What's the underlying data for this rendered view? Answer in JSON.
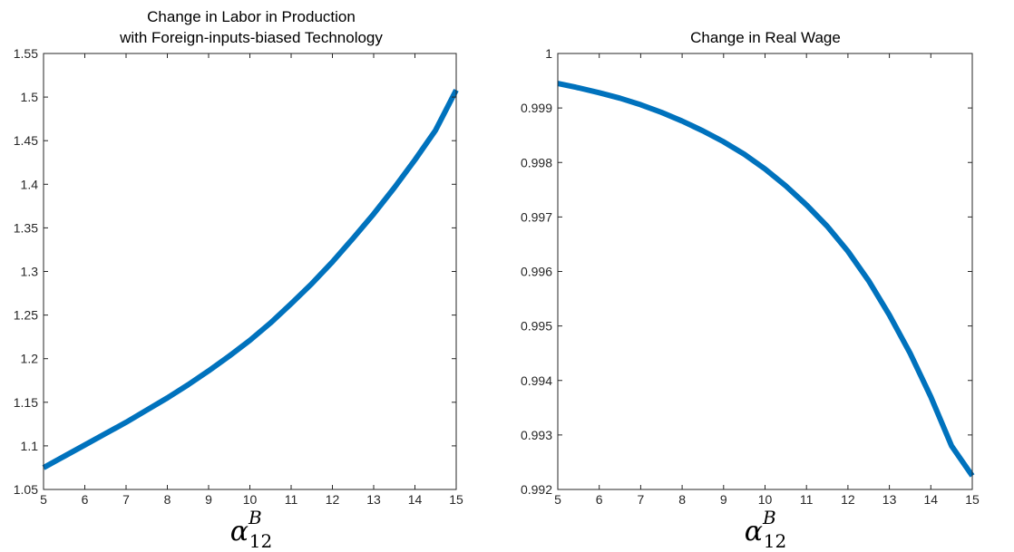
{
  "chart_data": [
    {
      "type": "line",
      "title": [
        "Change in Labor in Production",
        "with Foreign-inputs-biased Technology"
      ],
      "xlabel": {
        "base": "α",
        "sup": "B",
        "sub": "12"
      },
      "ylabel": "",
      "xlim": [
        5,
        15
      ],
      "ylim": [
        1.05,
        1.55
      ],
      "xticks": [
        5,
        6,
        7,
        8,
        9,
        10,
        11,
        12,
        13,
        14,
        15
      ],
      "xtick_labels": [
        "5",
        "6",
        "7",
        "8",
        "9",
        "10",
        "11",
        "12",
        "13",
        "14",
        "15"
      ],
      "yticks": [
        1.05,
        1.1,
        1.15,
        1.2,
        1.25,
        1.3,
        1.35,
        1.4,
        1.45,
        1.5,
        1.55
      ],
      "ytick_labels": [
        "1.05",
        "1.1",
        "1.15",
        "1.2",
        "1.25",
        "1.3",
        "1.35",
        "1.4",
        "1.45",
        "1.5",
        "1.55"
      ],
      "grid": false,
      "series": [
        {
          "color": "#0072BD",
          "x": [
            5,
            5.5,
            6,
            6.5,
            7,
            7.5,
            8,
            8.5,
            9,
            9.5,
            10,
            10.5,
            11,
            11.5,
            12,
            12.5,
            13,
            13.5,
            14,
            14.5,
            15
          ],
          "y": [
            1.075,
            1.088,
            1.101,
            1.114,
            1.127,
            1.141,
            1.155,
            1.17,
            1.186,
            1.203,
            1.221,
            1.241,
            1.263,
            1.286,
            1.311,
            1.338,
            1.366,
            1.396,
            1.428,
            1.462,
            1.508
          ]
        }
      ]
    },
    {
      "type": "line",
      "title": [
        "Change in Real Wage"
      ],
      "xlabel": {
        "base": "α",
        "sup": "B",
        "sub": "12"
      },
      "ylabel": "",
      "xlim": [
        5,
        15
      ],
      "ylim": [
        0.992,
        1.0
      ],
      "xticks": [
        5,
        6,
        7,
        8,
        9,
        10,
        11,
        12,
        13,
        14,
        15
      ],
      "xtick_labels": [
        "5",
        "6",
        "7",
        "8",
        "9",
        "10",
        "11",
        "12",
        "13",
        "14",
        "15"
      ],
      "yticks": [
        0.992,
        0.993,
        0.994,
        0.995,
        0.996,
        0.997,
        0.998,
        0.999,
        1.0
      ],
      "ytick_labels": [
        "0.992",
        "0.993",
        "0.994",
        "0.995",
        "0.996",
        "0.997",
        "0.998",
        "0.999",
        "1"
      ],
      "grid": false,
      "series": [
        {
          "color": "#0072BD",
          "x": [
            5,
            5.5,
            6,
            6.5,
            7,
            7.5,
            8,
            8.5,
            9,
            9.5,
            10,
            10.5,
            11,
            11.5,
            12,
            12.5,
            13,
            13.5,
            14,
            14.5,
            15
          ],
          "y": [
            0.99945,
            0.99937,
            0.99928,
            0.99918,
            0.99906,
            0.99892,
            0.99876,
            0.99858,
            0.99838,
            0.99815,
            0.99788,
            0.99757,
            0.99722,
            0.99683,
            0.99637,
            0.99583,
            0.9952,
            0.9945,
            0.9937,
            0.9928,
            0.99225
          ]
        }
      ]
    }
  ]
}
